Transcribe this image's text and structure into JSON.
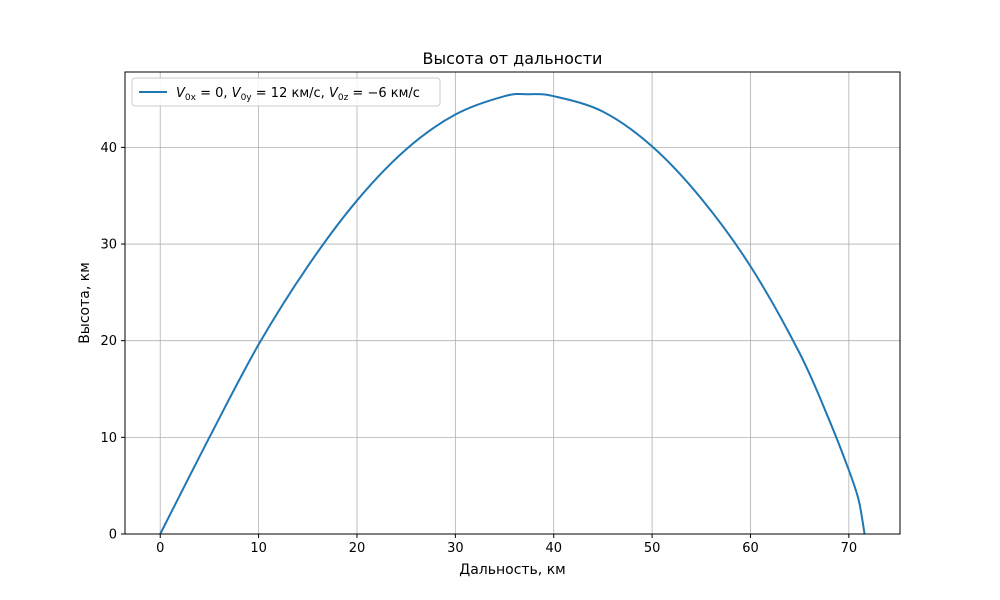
{
  "chart_data": {
    "type": "line",
    "title": "Высота от дальности",
    "xlabel": "Дальность, км",
    "ylabel": "Высота, км",
    "xlim": [
      -3.58,
      75.2
    ],
    "ylim": [
      0,
      47.8
    ],
    "xticks": [
      0,
      10,
      20,
      30,
      40,
      50,
      60,
      70
    ],
    "yticks": [
      0,
      10,
      20,
      30,
      40
    ],
    "grid": true,
    "legend_position": "top-left",
    "series": [
      {
        "name": "V0x = 0, V0y = 12 км/с, V0z = −6 км/с",
        "color": "#1f77b4",
        "x": [
          0,
          5,
          10,
          15,
          20,
          25,
          30,
          35,
          37.5,
          40,
          45,
          50,
          55,
          60,
          65,
          68,
          70,
          71,
          71.6
        ],
        "y": [
          0,
          10,
          19.6,
          27.7,
          34.5,
          39.8,
          43.4,
          45.3,
          45.5,
          45.3,
          43.7,
          40.1,
          34.7,
          27.7,
          18.7,
          11.8,
          6.6,
          3.5,
          0
        ]
      }
    ]
  }
}
